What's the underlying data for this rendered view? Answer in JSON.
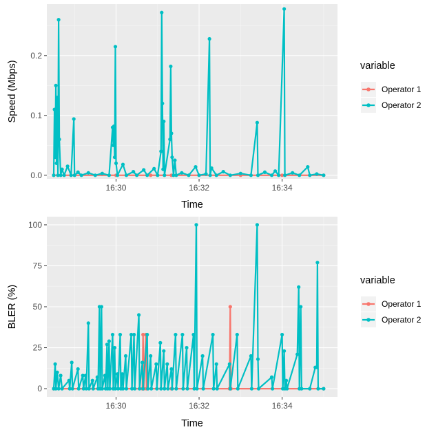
{
  "chart_data": [
    {
      "type": "line",
      "xlabel": "Time",
      "ylabel": "Speed (Mbps)",
      "x_ticks": [
        "16:30",
        "16:32",
        "16:34"
      ],
      "y_ticks": [
        "0.0",
        "0.1",
        "0.2"
      ],
      "xlim": [
        "16:28:20",
        "16:35:20"
      ],
      "ylim": [
        -0.006,
        0.286
      ],
      "legend": {
        "title": "variable",
        "placement": "right"
      },
      "series": [
        {
          "name": "Operator 1",
          "color": "#F8766D",
          "points": [
            [
              "16:28:30",
              0
            ],
            [
              "16:29:00",
              0
            ],
            [
              "16:30:00",
              0
            ],
            [
              "16:30:50",
              0
            ],
            [
              "16:31:20",
              0
            ],
            [
              "16:32:00",
              0
            ],
            [
              "16:33:00",
              0
            ],
            [
              "16:34:00",
              0
            ],
            [
              "16:35:00",
              0
            ]
          ]
        },
        {
          "name": "Operator 2",
          "color": "#00BFC4",
          "points": [
            [
              "16:28:30",
              0.0
            ],
            [
              "16:28:31",
              0.11
            ],
            [
              "16:28:32",
              0.03
            ],
            [
              "16:28:33",
              0.15
            ],
            [
              "16:28:34",
              0.02
            ],
            [
              "16:28:35",
              0.13
            ],
            [
              "16:28:36",
              0.0
            ],
            [
              "16:28:37",
              0.26
            ],
            [
              "16:28:38",
              0.06
            ],
            [
              "16:28:40",
              0.0
            ],
            [
              "16:28:42",
              0.01
            ],
            [
              "16:28:45",
              0.0
            ],
            [
              "16:28:50",
              0.015
            ],
            [
              "16:28:55",
              0.0
            ],
            [
              "16:28:59",
              0.094
            ],
            [
              "16:29:00",
              0.0
            ],
            [
              "16:29:05",
              0.005
            ],
            [
              "16:29:10",
              0.0
            ],
            [
              "16:29:20",
              0.004
            ],
            [
              "16:29:30",
              0.0
            ],
            [
              "16:29:40",
              0.003
            ],
            [
              "16:29:50",
              0.0
            ],
            [
              "16:29:55",
              0.08
            ],
            [
              "16:29:56",
              0.05
            ],
            [
              "16:29:57",
              0.082
            ],
            [
              "16:29:58",
              0.03
            ],
            [
              "16:29:59",
              0.215
            ],
            [
              "16:30:00",
              0.02
            ],
            [
              "16:30:02",
              0.0
            ],
            [
              "16:30:10",
              0.018
            ],
            [
              "16:30:15",
              0.0
            ],
            [
              "16:30:25",
              0.006
            ],
            [
              "16:30:30",
              0.0
            ],
            [
              "16:30:40",
              0.009
            ],
            [
              "16:30:45",
              0.0
            ],
            [
              "16:30:55",
              0.011
            ],
            [
              "16:31:00",
              0.0
            ],
            [
              "16:31:05",
              0.04
            ],
            [
              "16:31:06",
              0.272
            ],
            [
              "16:31:07",
              0.12
            ],
            [
              "16:31:08",
              0.01
            ],
            [
              "16:31:09",
              0.09
            ],
            [
              "16:31:10",
              0.0
            ],
            [
              "16:31:18",
              0.06
            ],
            [
              "16:31:19",
              0.182
            ],
            [
              "16:31:20",
              0.07
            ],
            [
              "16:31:21",
              0.03
            ],
            [
              "16:31:23",
              0.0
            ],
            [
              "16:31:25",
              0.025
            ],
            [
              "16:31:27",
              0.0
            ],
            [
              "16:31:35",
              0.004
            ],
            [
              "16:31:45",
              0.0
            ],
            [
              "16:31:55",
              0.014
            ],
            [
              "16:32:00",
              0.0
            ],
            [
              "16:32:10",
              0.002
            ],
            [
              "16:32:15",
              0.228
            ],
            [
              "16:32:16",
              0.0
            ],
            [
              "16:32:18",
              0.012
            ],
            [
              "16:32:25",
              0.0
            ],
            [
              "16:32:35",
              0.006
            ],
            [
              "16:32:45",
              0.0
            ],
            [
              "16:33:00",
              0.003
            ],
            [
              "16:33:15",
              0.0
            ],
            [
              "16:33:24",
              0.088
            ],
            [
              "16:33:25",
              0.0
            ],
            [
              "16:33:35",
              0.005
            ],
            [
              "16:33:45",
              0.0
            ],
            [
              "16:33:50",
              0.007
            ],
            [
              "16:33:55",
              0.0
            ],
            [
              "16:34:03",
              0.278
            ],
            [
              "16:34:04",
              0.0
            ],
            [
              "16:34:15",
              0.004
            ],
            [
              "16:34:25",
              0.0
            ],
            [
              "16:34:37",
              0.014
            ],
            [
              "16:34:40",
              0.0
            ],
            [
              "16:34:50",
              0.002
            ],
            [
              "16:35:00",
              0.0
            ]
          ]
        }
      ]
    },
    {
      "type": "line",
      "xlabel": "Time",
      "ylabel": "BLER (%)",
      "x_ticks": [
        "16:30",
        "16:32",
        "16:34"
      ],
      "y_ticks": [
        "0",
        "25",
        "50",
        "75",
        "100"
      ],
      "xlim": [
        "16:28:20",
        "16:35:20"
      ],
      "ylim": [
        -5,
        105
      ],
      "legend": {
        "title": "variable",
        "placement": "right"
      },
      "series": [
        {
          "name": "Operator 1",
          "color": "#F8766D",
          "points": [
            [
              "16:28:30",
              0
            ],
            [
              "16:30:38",
              0
            ],
            [
              "16:30:39",
              33
            ],
            [
              "16:30:40",
              0
            ],
            [
              "16:30:43",
              33
            ],
            [
              "16:30:44",
              0
            ],
            [
              "16:31:20",
              0
            ],
            [
              "16:32:44",
              0
            ],
            [
              "16:32:45",
              50
            ],
            [
              "16:32:46",
              0
            ],
            [
              "16:35:00",
              0
            ]
          ]
        },
        {
          "name": "Operator 2",
          "color": "#00BFC4",
          "points": [
            [
              "16:28:30",
              0
            ],
            [
              "16:28:32",
              15
            ],
            [
              "16:28:33",
              0
            ],
            [
              "16:28:35",
              10
            ],
            [
              "16:28:37",
              0
            ],
            [
              "16:28:40",
              8
            ],
            [
              "16:28:42",
              0
            ],
            [
              "16:28:52",
              5
            ],
            [
              "16:28:53",
              0
            ],
            [
              "16:28:56",
              16
            ],
            [
              "16:28:57",
              0
            ],
            [
              "16:29:05",
              12
            ],
            [
              "16:29:06",
              0
            ],
            [
              "16:29:12",
              8
            ],
            [
              "16:29:13",
              0
            ],
            [
              "16:29:16",
              8
            ],
            [
              "16:29:17",
              0
            ],
            [
              "16:29:20",
              40
            ],
            [
              "16:29:21",
              0
            ],
            [
              "16:29:26",
              5
            ],
            [
              "16:29:27",
              0
            ],
            [
              "16:29:33",
              7
            ],
            [
              "16:29:34",
              0
            ],
            [
              "16:29:36",
              50
            ],
            [
              "16:29:37",
              0
            ],
            [
              "16:29:39",
              50
            ],
            [
              "16:29:40",
              0
            ],
            [
              "16:29:44",
              8
            ],
            [
              "16:29:45",
              0
            ],
            [
              "16:29:47",
              27
            ],
            [
              "16:29:48",
              0
            ],
            [
              "16:29:50",
              29
            ],
            [
              "16:29:51",
              0
            ],
            [
              "16:29:55",
              33
            ],
            [
              "16:29:56",
              0
            ],
            [
              "16:29:58",
              25
            ],
            [
              "16:29:59",
              0
            ],
            [
              "16:30:02",
              9
            ],
            [
              "16:30:03",
              0
            ],
            [
              "16:30:06",
              33
            ],
            [
              "16:30:07",
              0
            ],
            [
              "16:30:09",
              9
            ],
            [
              "16:30:10",
              0
            ],
            [
              "16:30:14",
              20
            ],
            [
              "16:30:15",
              0
            ],
            [
              "16:30:22",
              33
            ],
            [
              "16:30:23",
              0
            ],
            [
              "16:30:26",
              33
            ],
            [
              "16:30:27",
              0
            ],
            [
              "16:30:33",
              45
            ],
            [
              "16:30:34",
              0
            ],
            [
              "16:30:38",
              16
            ],
            [
              "16:30:39",
              0
            ],
            [
              "16:30:45",
              33
            ],
            [
              "16:30:46",
              0
            ],
            [
              "16:30:50",
              20
            ],
            [
              "16:30:51",
              0
            ],
            [
              "16:30:58",
              15
            ],
            [
              "16:30:59",
              0
            ],
            [
              "16:31:04",
              28
            ],
            [
              "16:31:05",
              0
            ],
            [
              "16:31:09",
              23
            ],
            [
              "16:31:10",
              0
            ],
            [
              "16:31:14",
              15
            ],
            [
              "16:31:15",
              0
            ],
            [
              "16:31:20",
              12
            ],
            [
              "16:31:21",
              0
            ],
            [
              "16:31:26",
              33
            ],
            [
              "16:31:27",
              0
            ],
            [
              "16:31:36",
              33
            ],
            [
              "16:31:37",
              0
            ],
            [
              "16:31:42",
              25
            ],
            [
              "16:31:43",
              0
            ],
            [
              "16:31:52",
              33
            ],
            [
              "16:31:53",
              0
            ],
            [
              "16:31:56",
              100
            ],
            [
              "16:31:57",
              0
            ],
            [
              "16:32:05",
              20
            ],
            [
              "16:32:06",
              0
            ],
            [
              "16:32:20",
              33
            ],
            [
              "16:32:21",
              0
            ],
            [
              "16:32:25",
              15
            ],
            [
              "16:32:26",
              0
            ],
            [
              "16:32:44",
              15
            ],
            [
              "16:32:45",
              0
            ],
            [
              "16:32:55",
              33
            ],
            [
              "16:32:56",
              0
            ],
            [
              "16:33:15",
              20
            ],
            [
              "16:33:16",
              0
            ],
            [
              "16:33:24",
              100
            ],
            [
              "16:33:25",
              18
            ],
            [
              "16:33:26",
              0
            ],
            [
              "16:33:45",
              7
            ],
            [
              "16:33:46",
              0
            ],
            [
              "16:34:00",
              33
            ],
            [
              "16:34:01",
              0
            ],
            [
              "16:34:03",
              23
            ],
            [
              "16:34:04",
              0
            ],
            [
              "16:34:06",
              5
            ],
            [
              "16:34:07",
              0
            ],
            [
              "16:34:22",
              21
            ],
            [
              "16:34:24",
              62
            ],
            [
              "16:34:25",
              0
            ],
            [
              "16:34:27",
              50
            ],
            [
              "16:34:28",
              0
            ],
            [
              "16:34:40",
              0
            ],
            [
              "16:34:48",
              13
            ],
            [
              "16:34:50",
              13
            ],
            [
              "16:34:51",
              77
            ],
            [
              "16:34:52",
              0
            ],
            [
              "16:35:00",
              0
            ]
          ]
        }
      ]
    }
  ]
}
